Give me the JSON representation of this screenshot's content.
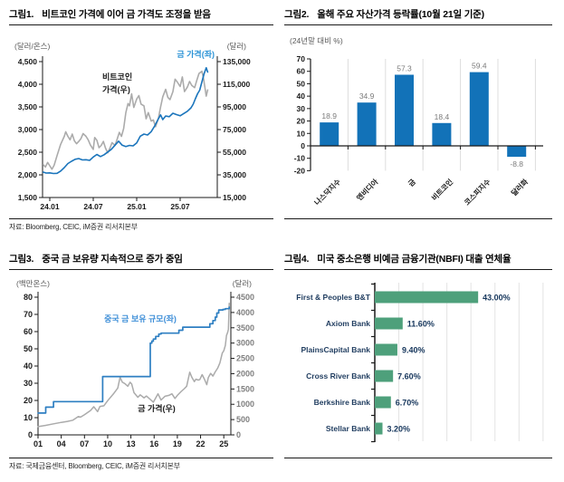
{
  "page": {
    "background": "#ffffff"
  },
  "figures": [
    {
      "label": "그림1.",
      "title": "비트코인 가격에 이어 금 가격도 조정을 받음",
      "source": "자료: Bloomberg, CEIC, iM증권 리서치본부"
    },
    {
      "label": "그림2.",
      "title": "올해 주요 자산가격 등락률(10월 21일 기준)",
      "source": ""
    },
    {
      "label": "그림3.",
      "title": "중국 금 보유량 지속적으로 증가 중임",
      "source": "자료: 국제금융센터, Bloomberg, CEIC, iM증권 리서치본부"
    },
    {
      "label": "그림4.",
      "title": "미국 중소은행 비예금 금융기관(NBFI) 대출 연체율",
      "source": ""
    }
  ],
  "chart_data": [
    {
      "type": "line",
      "title": "비트코인 가격에 이어 금 가격도 조정을 받음",
      "left_axis": {
        "unit": "(달러/온스)",
        "min": 1500,
        "max": 4500,
        "ticks": [
          "4,500",
          "4,000",
          "3,500",
          "3,000",
          "2,500",
          "2,000",
          "1,500"
        ]
      },
      "right_axis": {
        "unit": "(달러)",
        "min": 15000,
        "max": 135000,
        "ticks": [
          "135,000",
          "115,000",
          "95,000",
          "75,000",
          "55,000",
          "35,000",
          "15,000"
        ]
      },
      "x_ticks": [
        "24.01",
        "24.07",
        "25.01",
        "25.07"
      ],
      "annotations": [
        {
          "text": "금 가격(좌)",
          "color": "#2B93D6"
        },
        {
          "text": "비트코인",
          "color": "#1a1a1a"
        },
        {
          "text": "가격(우)",
          "color": "#1a1a1a"
        }
      ],
      "series": [
        {
          "key": "gold-price-left",
          "name": "금 가격(좌)",
          "axis": "left",
          "color": "#1B75BC",
          "points": [
            [
              -0.9,
              2060
            ],
            [
              -0.5,
              2040
            ],
            [
              0,
              2045
            ],
            [
              0.5,
              2030
            ],
            [
              1,
              2035
            ],
            [
              1.5,
              2085
            ],
            [
              2,
              2160
            ],
            [
              2.5,
              2250
            ],
            [
              3,
              2300
            ],
            [
              3.5,
              2345
            ],
            [
              4,
              2360
            ],
            [
              4.5,
              2330
            ],
            [
              5,
              2335
            ],
            [
              5.5,
              2320
            ],
            [
              6,
              2395
            ],
            [
              6.5,
              2450
            ],
            [
              7,
              2405
            ],
            [
              7.5,
              2445
            ],
            [
              8,
              2505
            ],
            [
              8.5,
              2565
            ],
            [
              9,
              2655
            ],
            [
              9.5,
              2745
            ],
            [
              10,
              2655
            ],
            [
              10.5,
              2625
            ],
            [
              11,
              2650
            ],
            [
              11.5,
              2640
            ],
            [
              12,
              2705
            ],
            [
              12.5,
              2855
            ],
            [
              13,
              2900
            ],
            [
              13.5,
              2880
            ],
            [
              14,
              2955
            ],
            [
              14.5,
              3085
            ],
            [
              15,
              3240
            ],
            [
              15.3,
              3325
            ],
            [
              15.6,
              3220
            ],
            [
              16,
              3300
            ],
            [
              16.5,
              3285
            ],
            [
              17,
              3360
            ],
            [
              17.5,
              3330
            ],
            [
              18,
              3305
            ],
            [
              18.5,
              3355
            ],
            [
              19,
              3405
            ],
            [
              19.5,
              3480
            ],
            [
              19.8,
              3560
            ],
            [
              20.1,
              3680
            ],
            [
              20.4,
              3790
            ],
            [
              20.7,
              3870
            ],
            [
              21,
              4050
            ],
            [
              21.3,
              4230
            ],
            [
              21.6,
              4365
            ],
            [
              21.8,
              4270
            ]
          ]
        },
        {
          "key": "bitcoin-price-right",
          "name": "비트코인 가격(우)",
          "axis": "right",
          "color": "#ABABAB",
          "points": [
            [
              -0.9,
              44000
            ],
            [
              -0.6,
              42000
            ],
            [
              -0.3,
              46000
            ],
            [
              0,
              43000
            ],
            [
              0.3,
              40000
            ],
            [
              0.6,
              43500
            ],
            [
              1,
              52000
            ],
            [
              1.5,
              62000
            ],
            [
              2,
              69000
            ],
            [
              2.2,
              73000
            ],
            [
              2.5,
              69000
            ],
            [
              2.8,
              66000
            ],
            [
              3.1,
              71000
            ],
            [
              3.4,
              65000
            ],
            [
              3.7,
              62500
            ],
            [
              4,
              64500
            ],
            [
              4.3,
              67000
            ],
            [
              4.6,
              71500
            ],
            [
              5,
              69000
            ],
            [
              5.3,
              66000
            ],
            [
              5.6,
              61500
            ],
            [
              6,
              57500
            ],
            [
              6.2,
              68000
            ],
            [
              6.5,
              65500
            ],
            [
              6.8,
              59000
            ],
            [
              7.1,
              61000
            ],
            [
              7.4,
              64500
            ],
            [
              7.7,
              58500
            ],
            [
              8,
              54500
            ],
            [
              8.3,
              58500
            ],
            [
              8.6,
              63500
            ],
            [
              9,
              61000
            ],
            [
              9.3,
              66500
            ],
            [
              9.6,
              72500
            ],
            [
              9.9,
              69000
            ],
            [
              10.2,
              76000
            ],
            [
              10.5,
              90000
            ],
            [
              10.8,
              98000
            ],
            [
              11,
              96000
            ],
            [
              11.3,
              106500
            ],
            [
              11.6,
              94500
            ],
            [
              12,
              102000
            ],
            [
              12.3,
              105000
            ],
            [
              12.6,
              97500
            ],
            [
              13,
              96000
            ],
            [
              13.3,
              84500
            ],
            [
              13.6,
              90000
            ],
            [
              14,
              82500
            ],
            [
              14.3,
              83500
            ],
            [
              14.6,
              77500
            ],
            [
              15,
              85000
            ],
            [
              15.3,
              95000
            ],
            [
              15.6,
              104000
            ],
            [
              16,
              110500
            ],
            [
              16.3,
              103500
            ],
            [
              16.6,
              101500
            ],
            [
              17,
              108500
            ],
            [
              17.3,
              119500
            ],
            [
              17.6,
              117000
            ],
            [
              18,
              113000
            ],
            [
              18.3,
              121500
            ],
            [
              18.6,
              108500
            ],
            [
              19,
              112500
            ],
            [
              19.3,
              117500
            ],
            [
              19.6,
              114000
            ],
            [
              20,
              112000
            ],
            [
              20.3,
              118500
            ],
            [
              20.6,
              124500
            ],
            [
              21,
              126500
            ],
            [
              21.2,
              121000
            ],
            [
              21.4,
              113000
            ],
            [
              21.6,
              104500
            ],
            [
              21.8,
              110000
            ]
          ]
        }
      ]
    },
    {
      "type": "bar",
      "title": "올해 주요 자산가격 등락률(10월 21일 기준)",
      "unit_label": "(24년말 대비 %)",
      "categories": [
        "나스닥지수",
        "엔비디아",
        "금",
        "비트코인",
        "코스피지수",
        "달러화"
      ],
      "values": [
        18.9,
        34.9,
        57.3,
        18.4,
        59.4,
        -8.8
      ],
      "value_labels": [
        "18.9",
        "34.9",
        "57.3",
        "18.4",
        "59.4",
        "-8.8"
      ],
      "y_ticks": [
        "70",
        "60",
        "50",
        "40",
        "30",
        "20",
        "10",
        "0",
        "-10",
        "-20"
      ],
      "ylim": [
        -20,
        70
      ],
      "bar_color": "#1272B8",
      "value_color": "#7A7A7A"
    },
    {
      "type": "line",
      "title": "중국 금 보유량 지속적으로 증가 중임",
      "left_axis": {
        "unit": "(백만온스)",
        "min": 0,
        "max": 80,
        "ticks": [
          "80",
          "70",
          "60",
          "50",
          "40",
          "30",
          "20",
          "10",
          "0"
        ]
      },
      "right_axis": {
        "unit": "(달러)",
        "min": 0,
        "max": 4500,
        "ticks": [
          "4500",
          "4000",
          "3500",
          "3000",
          "2500",
          "2000",
          "1500",
          "1000",
          "500",
          "0"
        ]
      },
      "x_ticks": [
        "01",
        "04",
        "07",
        "10",
        "13",
        "16",
        "19",
        "22",
        "25"
      ],
      "annotations": [
        {
          "text": "중국 금 보유 규모(좌)",
          "color": "#3F8FD8"
        },
        {
          "text": "금 가격(우)",
          "color": "#1a1a1a"
        }
      ],
      "series": [
        {
          "key": "china-gold-holdings-left",
          "name": "중국 금 보유 규모(좌)",
          "axis": "left",
          "color": "#2E7FC2",
          "points": [
            [
              2001,
              12.7
            ],
            [
              2001.9,
              12.7
            ],
            [
              2002,
              16.1
            ],
            [
              2002.9,
              16.1
            ],
            [
              2003,
              19.3
            ],
            [
              2009.2,
              19.3
            ],
            [
              2009.35,
              33.9
            ],
            [
              2015.4,
              33.9
            ],
            [
              2015.5,
              53.3
            ],
            [
              2015.7,
              54.5
            ],
            [
              2015.9,
              55.7
            ],
            [
              2016.2,
              57.2
            ],
            [
              2016.6,
              58.6
            ],
            [
              2016.9,
              59.1
            ],
            [
              2018.9,
              59.1
            ],
            [
              2019.2,
              60.8
            ],
            [
              2019.7,
              62.6
            ],
            [
              2022.9,
              62.6
            ],
            [
              2023.2,
              64.6
            ],
            [
              2023.6,
              66.4
            ],
            [
              2023.9,
              68.4
            ],
            [
              2024.1,
              70.8
            ],
            [
              2024.35,
              72.6
            ],
            [
              2024.9,
              72.9
            ],
            [
              2025.2,
              73.3
            ],
            [
              2025.7,
              74.2
            ]
          ]
        },
        {
          "key": "gold-price-right",
          "name": "금 가격(우)",
          "axis": "right",
          "color": "#ABABAB",
          "points": [
            [
              2001,
              270
            ],
            [
              2002,
              310
            ],
            [
              2003,
              360
            ],
            [
              2004,
              410
            ],
            [
              2004.8,
              440
            ],
            [
              2005.5,
              480
            ],
            [
              2006.2,
              600
            ],
            [
              2006.5,
              580
            ],
            [
              2007,
              660
            ],
            [
              2007.8,
              800
            ],
            [
              2008.2,
              920
            ],
            [
              2008.7,
              760
            ],
            [
              2009,
              930
            ],
            [
              2009.5,
              950
            ],
            [
              2010,
              1120
            ],
            [
              2010.8,
              1360
            ],
            [
              2011.3,
              1530
            ],
            [
              2011.6,
              1880
            ],
            [
              2011.9,
              1720
            ],
            [
              2012.2,
              1680
            ],
            [
              2012.6,
              1590
            ],
            [
              2012.9,
              1720
            ],
            [
              2013.1,
              1660
            ],
            [
              2013.4,
              1380
            ],
            [
              2013.9,
              1230
            ],
            [
              2014.2,
              1310
            ],
            [
              2014.7,
              1210
            ],
            [
              2015,
              1270
            ],
            [
              2015.4,
              1180
            ],
            [
              2015.9,
              1070
            ],
            [
              2016.5,
              1340
            ],
            [
              2016.9,
              1140
            ],
            [
              2017.4,
              1260
            ],
            [
              2017.9,
              1290
            ],
            [
              2018.3,
              1340
            ],
            [
              2018.7,
              1190
            ],
            [
              2019,
              1290
            ],
            [
              2019.5,
              1420
            ],
            [
              2019.9,
              1510
            ],
            [
              2020.2,
              1590
            ],
            [
              2020.6,
              2050
            ],
            [
              2020.9,
              1870
            ],
            [
              2021.2,
              1740
            ],
            [
              2021.4,
              1820
            ],
            [
              2021.7,
              1790
            ],
            [
              2021.9,
              1810
            ],
            [
              2022.2,
              1970
            ],
            [
              2022.5,
              1820
            ],
            [
              2022.8,
              1640
            ],
            [
              2023,
              1870
            ],
            [
              2023.3,
              2010
            ],
            [
              2023.6,
              1920
            ],
            [
              2023.9,
              2060
            ],
            [
              2024.2,
              2180
            ],
            [
              2024.5,
              2350
            ],
            [
              2024.8,
              2670
            ],
            [
              2025,
              2750
            ],
            [
              2025.2,
              2920
            ],
            [
              2025.35,
              3250
            ],
            [
              2025.5,
              3350
            ],
            [
              2025.6,
              3450
            ],
            [
              2025.7,
              4300
            ]
          ]
        }
      ]
    },
    {
      "type": "hbar",
      "title": "미국 중소은행 비예금 금융기관(NBFI) 대출 연체율",
      "categories": [
        "First & Peoples B&T",
        "Axiom Bank",
        "PlainsCapital Bank",
        "Cross River Bank",
        "Berkshire Bank",
        "Stellar Bank"
      ],
      "values": [
        43.0,
        11.6,
        9.4,
        7.6,
        6.7,
        3.2
      ],
      "value_labels": [
        "43.00%",
        "11.60%",
        "9.40%",
        "7.60%",
        "6.70%",
        "3.20%"
      ],
      "xlim": [
        0,
        70
      ],
      "bar_color": "#4EA07B",
      "label_color": "#1F3C5F",
      "value_color": "#16365C"
    }
  ]
}
